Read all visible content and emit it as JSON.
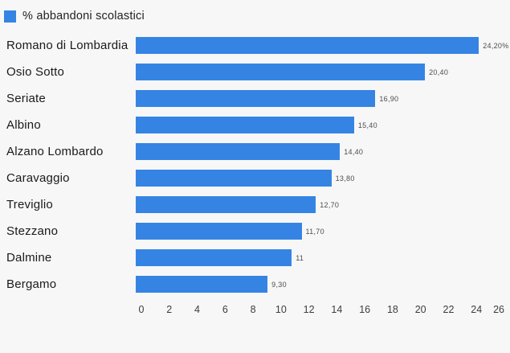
{
  "page": {
    "background_color": "#f7f7f7"
  },
  "legend": {
    "label": "% abbandoni scolastici",
    "swatch_color": "#3584e4"
  },
  "chart_data": {
    "type": "bar",
    "orientation": "horizontal",
    "title": "% abbandoni scolastici",
    "categories": [
      "Romano di Lombardia",
      "Osio Sotto",
      "Seriate",
      "Albino",
      "Alzano Lombardo",
      "Caravaggio",
      "Treviglio",
      "Stezzano",
      "Dalmine",
      "Bergamo"
    ],
    "values": [
      24.2,
      20.4,
      16.9,
      15.4,
      14.4,
      13.8,
      12.7,
      11.7,
      11,
      9.3
    ],
    "value_labels": [
      "24,20%",
      "20,40",
      "16,90",
      "15,40",
      "14,40",
      "13,80",
      "12,70",
      "11,70",
      "11",
      "9,30"
    ],
    "xlabel": "",
    "ylabel": "",
    "xlim": [
      0,
      26
    ],
    "x_ticks": [
      0,
      2,
      4,
      6,
      8,
      10,
      12,
      14,
      16,
      18,
      20,
      22,
      24,
      26
    ],
    "grid": false,
    "legend_position": "top-left",
    "bar_color": "#3584e4",
    "label_color": "#1a1a1a",
    "value_label_color": "#4d4d4d",
    "axis_label_color": "#3d3d3d"
  }
}
